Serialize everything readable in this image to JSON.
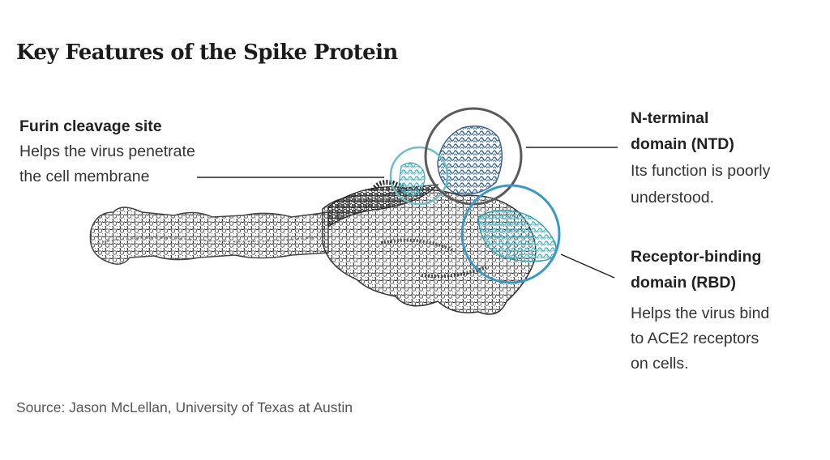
{
  "title": "Key Features of the Spike Protein",
  "labels": {
    "furin": {
      "heading": "Furin cleavage site",
      "body": [
        "Helps the virus penetrate",
        "the cell membrane"
      ],
      "color": "#5fb6bf"
    },
    "ntd": {
      "heading": [
        "N-terminal",
        "domain (NTD)"
      ],
      "body": [
        "Its function is poorly",
        "understood."
      ],
      "color": "#5a5a5a"
    },
    "rbd": {
      "heading": [
        "Receptor-binding",
        "domain (RBD)"
      ],
      "body": [
        "Helps the virus bind",
        "to ACE2 receptors",
        "on cells."
      ],
      "color": "#3b98c6"
    }
  },
  "source": "Source: Jason McLellan, University of Texas at Austin"
}
